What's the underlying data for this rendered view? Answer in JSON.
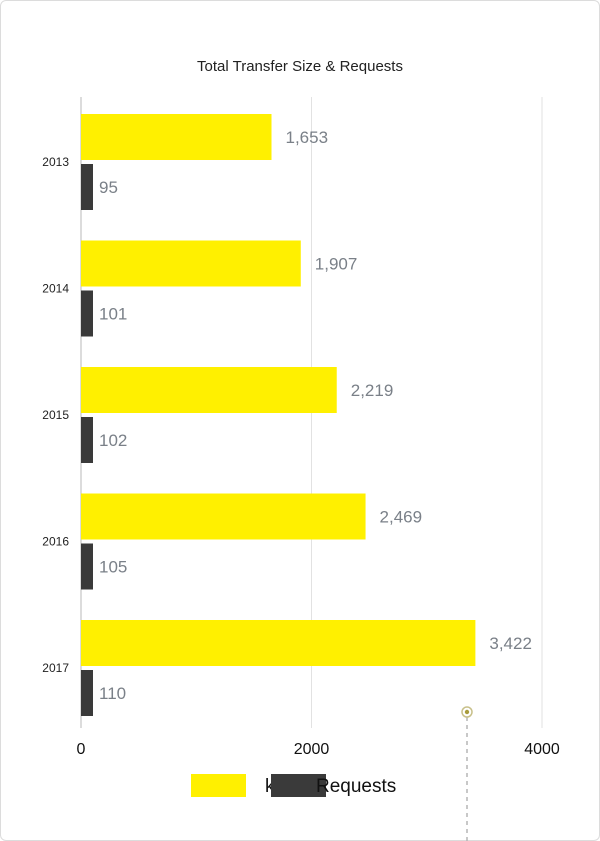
{
  "chart_data": {
    "type": "bar",
    "orientation": "horizontal",
    "title": "Total Transfer Size & Requests",
    "categories": [
      "2013",
      "2014",
      "2015",
      "2016",
      "2017"
    ],
    "series": [
      {
        "name": "kB",
        "values": [
          1653,
          1907,
          2219,
          2469,
          3422
        ],
        "labels": [
          "1,653",
          "1,907",
          "2,219",
          "2,469",
          "3,422"
        ],
        "color": "#FFF000"
      },
      {
        "name": "Requests",
        "values": [
          95,
          101,
          102,
          105,
          110
        ],
        "labels": [
          "95",
          "101",
          "102",
          "105",
          "110"
        ],
        "color": "#3a3a3a"
      }
    ],
    "xlim": [
      0,
      4000
    ],
    "xticks": [
      0,
      2000,
      4000
    ],
    "xtick_labels": [
      "0",
      "2000",
      "4000"
    ],
    "grid": true,
    "legend": "bottom",
    "label_color": "#7a8088"
  }
}
